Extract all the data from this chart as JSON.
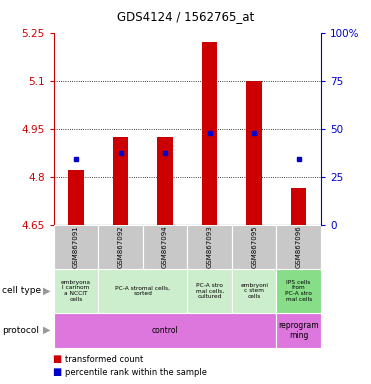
{
  "title": "GDS4124 / 1562765_at",
  "samples": [
    "GSM867091",
    "GSM867092",
    "GSM867094",
    "GSM867093",
    "GSM867095",
    "GSM867096"
  ],
  "red_values": [
    4.82,
    4.925,
    4.925,
    5.22,
    5.1,
    4.765
  ],
  "blue_values": [
    4.855,
    4.875,
    4.875,
    4.935,
    4.935,
    4.855
  ],
  "ylim_left": [
    4.65,
    5.25
  ],
  "ylim_right": [
    0,
    100
  ],
  "left_ticks": [
    4.65,
    4.8,
    4.95,
    5.1,
    5.25
  ],
  "right_ticks": [
    0,
    25,
    50,
    75,
    100
  ],
  "left_tick_labels": [
    "4.65",
    "4.8",
    "4.95",
    "5.1",
    "5.25"
  ],
  "right_tick_labels": [
    "0",
    "25",
    "50",
    "75",
    "100%"
  ],
  "bar_bottom": 4.65,
  "bar_width": 0.35,
  "cell_type_label": "cell type",
  "protocol_label": "protocol",
  "cell_types": [
    {
      "text": "embryona\nl carinom\na NCCIT\ncells",
      "span": [
        0,
        1
      ],
      "color": "#cceecc"
    },
    {
      "text": "PC-A stromal cells,\nsorted",
      "span": [
        1,
        3
      ],
      "color": "#cceecc"
    },
    {
      "text": "PC-A stro\nmal cells,\ncultured",
      "span": [
        3,
        4
      ],
      "color": "#cceecc"
    },
    {
      "text": "embryoni\nc stem\ncells",
      "span": [
        4,
        5
      ],
      "color": "#cceecc"
    },
    {
      "text": "IPS cells\nfrom\nPC-A stro\nmal cells",
      "span": [
        5,
        6
      ],
      "color": "#88dd88"
    }
  ],
  "protocols": [
    {
      "text": "control",
      "span": [
        0,
        5
      ],
      "color": "#dd77dd"
    },
    {
      "text": "reprogram\nming",
      "span": [
        5,
        6
      ],
      "color": "#dd77dd"
    }
  ],
  "legend_red_label": "transformed count",
  "legend_blue_label": "percentile rank within the sample",
  "red_color": "#cc0000",
  "blue_color": "#0000cc",
  "grid_color": "#888888",
  "bg_sample_row": "#c8c8c8",
  "left_axis_color": "#cc0000",
  "right_axis_color": "#0000cc"
}
